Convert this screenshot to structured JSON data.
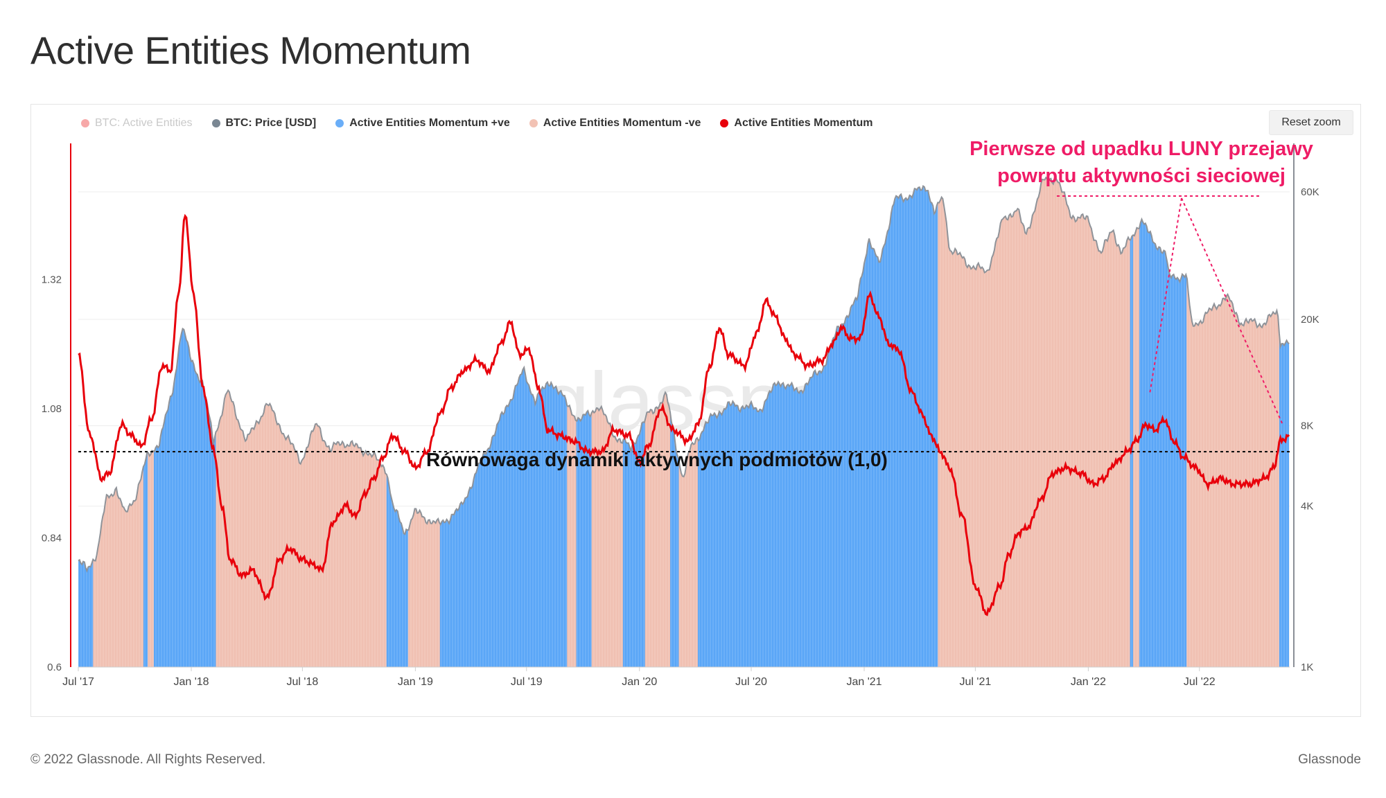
{
  "title": "Active Entities Momentum",
  "reset_zoom_label": "Reset zoom",
  "footer": {
    "copyright": "© 2022 Glassnode. All Rights Reserved.",
    "brand": "Glassnode"
  },
  "watermark": "glassnode",
  "legend": [
    {
      "label": "BTC: Active Entities",
      "color": "#f04848",
      "muted": true
    },
    {
      "label": "BTC: Price [USD]",
      "color": "#7a8793",
      "muted": false
    },
    {
      "label": "Active Entities Momentum +ve",
      "color": "#6aaef8",
      "muted": false
    },
    {
      "label": "Active Entities Momentum -ve",
      "color": "#f2c2b4",
      "muted": false
    },
    {
      "label": "Active Entities Momentum",
      "color": "#e8000b",
      "muted": false
    }
  ],
  "colors": {
    "positive": "#5aa6f7",
    "negative": "#f0c0b2",
    "momentum_line": "#e8000b",
    "price_line": "#8f9399",
    "annotation": "#ef1c66"
  },
  "annotations": {
    "luna": "Pierwsze od upadku LUNY przejawy\npowrptu aktywności sieciowej",
    "equilibrium": "Równowaga dynamiki aktywnych podmiotów (1,0)"
  },
  "chart_data": {
    "type": "area",
    "x_ticks": [
      "Jul '17",
      "Jan '18",
      "Jul '18",
      "Jan '19",
      "Jul '19",
      "Jan '20",
      "Jul '20",
      "Jan '21",
      "Jul '21",
      "Jan '22",
      "Jul '22"
    ],
    "x_tick_dates": [
      "2017-07-01",
      "2018-01-01",
      "2018-07-01",
      "2019-01-01",
      "2019-07-01",
      "2020-01-01",
      "2020-07-01",
      "2021-01-01",
      "2021-07-01",
      "2022-01-01",
      "2022-07-01"
    ],
    "x_range": [
      "2017-07-01",
      "2022-11-25"
    ],
    "y_left": {
      "ticks": [
        "0.6",
        "0.84",
        "1.08",
        "1.32"
      ],
      "range": [
        0.6,
        1.57
      ]
    },
    "y_right": {
      "scale": "log",
      "ticks": [
        "1K",
        "4K",
        "8K",
        "20K",
        "60K"
      ],
      "tick_values": [
        1000,
        4000,
        8000,
        20000,
        60000
      ],
      "range": [
        1000,
        90000
      ]
    },
    "equilibrium_level": 1.0,
    "series": [
      {
        "name": "BTC: Price [USD]",
        "axis": "right",
        "points": [
          [
            "2017-07-01",
            2500
          ],
          [
            "2017-07-15",
            2300
          ],
          [
            "2017-08-01",
            2700
          ],
          [
            "2017-08-15",
            4200
          ],
          [
            "2017-09-01",
            4700
          ],
          [
            "2017-09-15",
            3700
          ],
          [
            "2017-10-01",
            4300
          ],
          [
            "2017-10-20",
            6000
          ],
          [
            "2017-11-10",
            7000
          ],
          [
            "2017-12-01",
            10500
          ],
          [
            "2017-12-17",
            19000
          ],
          [
            "2018-01-01",
            14000
          ],
          [
            "2018-01-20",
            11500
          ],
          [
            "2018-02-06",
            7000
          ],
          [
            "2018-03-01",
            10800
          ],
          [
            "2018-04-01",
            7000
          ],
          [
            "2018-05-05",
            9700
          ],
          [
            "2018-06-01",
            7500
          ],
          [
            "2018-06-29",
            5900
          ],
          [
            "2018-07-25",
            8200
          ],
          [
            "2018-08-15",
            6400
          ],
          [
            "2018-09-01",
            7000
          ],
          [
            "2018-10-15",
            6400
          ],
          [
            "2018-11-15",
            5500
          ],
          [
            "2018-11-25",
            4000
          ],
          [
            "2018-12-15",
            3200
          ],
          [
            "2019-01-01",
            3800
          ],
          [
            "2019-02-08",
            3400
          ],
          [
            "2019-03-15",
            3900
          ],
          [
            "2019-04-05",
            5000
          ],
          [
            "2019-05-15",
            8000
          ],
          [
            "2019-06-26",
            12800
          ],
          [
            "2019-07-15",
            10000
          ],
          [
            "2019-08-10",
            11800
          ],
          [
            "2019-09-25",
            8300
          ],
          [
            "2019-10-26",
            9500
          ],
          [
            "2019-11-25",
            7200
          ],
          [
            "2019-12-18",
            6600
          ],
          [
            "2020-01-15",
            8800
          ],
          [
            "2020-02-14",
            10300
          ],
          [
            "2020-03-12",
            5000
          ],
          [
            "2020-03-25",
            6700
          ],
          [
            "2020-05-01",
            8800
          ],
          [
            "2020-06-01",
            9600
          ],
          [
            "2020-07-15",
            9200
          ],
          [
            "2020-08-15",
            11800
          ],
          [
            "2020-09-15",
            10700
          ],
          [
            "2020-10-25",
            13100
          ],
          [
            "2020-11-20",
            18500
          ],
          [
            "2020-12-20",
            23500
          ],
          [
            "2021-01-08",
            40000
          ],
          [
            "2021-01-25",
            32000
          ],
          [
            "2021-02-20",
            56000
          ],
          [
            "2021-03-15",
            58000
          ],
          [
            "2021-04-14",
            63000
          ],
          [
            "2021-04-25",
            50000
          ],
          [
            "2021-05-10",
            57000
          ],
          [
            "2021-05-20",
            37000
          ],
          [
            "2021-06-22",
            32000
          ],
          [
            "2021-07-20",
            30000
          ],
          [
            "2021-08-15",
            47000
          ],
          [
            "2021-09-07",
            52000
          ],
          [
            "2021-09-21",
            41000
          ],
          [
            "2021-10-20",
            66000
          ],
          [
            "2021-11-10",
            68000
          ],
          [
            "2021-12-04",
            49000
          ],
          [
            "2022-01-01",
            47000
          ],
          [
            "2022-01-22",
            35000
          ],
          [
            "2022-02-10",
            44000
          ],
          [
            "2022-02-24",
            35000
          ],
          [
            "2022-03-28",
            47000
          ],
          [
            "2022-04-15",
            40000
          ],
          [
            "2022-05-07",
            35000
          ],
          [
            "2022-05-12",
            29000
          ],
          [
            "2022-06-10",
            29000
          ],
          [
            "2022-06-18",
            19000
          ],
          [
            "2022-07-05",
            20000
          ],
          [
            "2022-08-14",
            24500
          ],
          [
            "2022-09-05",
            19700
          ],
          [
            "2022-10-10",
            19200
          ],
          [
            "2022-11-05",
            21200
          ],
          [
            "2022-11-10",
            16500
          ],
          [
            "2022-11-25",
            16500
          ]
        ]
      },
      {
        "name": "Active Entities Momentum",
        "axis": "left",
        "points": [
          [
            "2017-07-01",
            1.18
          ],
          [
            "2017-07-20",
            1.03
          ],
          [
            "2017-08-08",
            0.95
          ],
          [
            "2017-08-20",
            0.96
          ],
          [
            "2017-09-10",
            1.05
          ],
          [
            "2017-09-25",
            1.03
          ],
          [
            "2017-10-12",
            1.01
          ],
          [
            "2017-10-28",
            1.06
          ],
          [
            "2017-11-15",
            1.16
          ],
          [
            "2017-11-28",
            1.15
          ],
          [
            "2017-12-12",
            1.3
          ],
          [
            "2017-12-22",
            1.44
          ],
          [
            "2018-01-05",
            1.29
          ],
          [
            "2018-01-20",
            1.12
          ],
          [
            "2018-02-05",
            1.01
          ],
          [
            "2018-02-20",
            0.9
          ],
          [
            "2018-03-05",
            0.8
          ],
          [
            "2018-03-25",
            0.77
          ],
          [
            "2018-04-10",
            0.78
          ],
          [
            "2018-05-05",
            0.73
          ],
          [
            "2018-05-25",
            0.8
          ],
          [
            "2018-06-10",
            0.82
          ],
          [
            "2018-07-01",
            0.8
          ],
          [
            "2018-07-20",
            0.79
          ],
          [
            "2018-08-01",
            0.78
          ],
          [
            "2018-08-20",
            0.87
          ],
          [
            "2018-09-10",
            0.9
          ],
          [
            "2018-09-25",
            0.88
          ],
          [
            "2018-10-10",
            0.92
          ],
          [
            "2018-10-25",
            0.95
          ],
          [
            "2018-11-10",
            0.99
          ],
          [
            "2018-11-25",
            1.03
          ],
          [
            "2018-12-15",
            1.0
          ],
          [
            "2019-01-01",
            0.97
          ],
          [
            "2019-01-20",
            1.0
          ],
          [
            "2019-02-10",
            1.07
          ],
          [
            "2019-03-01",
            1.12
          ],
          [
            "2019-03-20",
            1.15
          ],
          [
            "2019-04-10",
            1.17
          ],
          [
            "2019-05-01",
            1.15
          ],
          [
            "2019-05-20",
            1.2
          ],
          [
            "2019-06-05",
            1.24
          ],
          [
            "2019-06-20",
            1.18
          ],
          [
            "2019-07-05",
            1.19
          ],
          [
            "2019-07-20",
            1.12
          ],
          [
            "2019-08-05",
            1.04
          ],
          [
            "2019-08-25",
            1.03
          ],
          [
            "2019-09-15",
            1.02
          ],
          [
            "2019-10-10",
            1.0
          ],
          [
            "2019-11-01",
            1.0
          ],
          [
            "2019-11-20",
            1.04
          ],
          [
            "2019-12-15",
            1.03
          ],
          [
            "2020-01-01",
            0.98
          ],
          [
            "2020-01-15",
            1.01
          ],
          [
            "2020-02-05",
            1.08
          ],
          [
            "2020-02-25",
            1.04
          ],
          [
            "2020-03-20",
            1.02
          ],
          [
            "2020-04-05",
            1.05
          ],
          [
            "2020-04-25",
            1.16
          ],
          [
            "2020-05-10",
            1.23
          ],
          [
            "2020-05-25",
            1.18
          ],
          [
            "2020-06-20",
            1.16
          ],
          [
            "2020-07-10",
            1.22
          ],
          [
            "2020-07-25",
            1.28
          ],
          [
            "2020-08-10",
            1.25
          ],
          [
            "2020-08-25",
            1.21
          ],
          [
            "2020-09-10",
            1.18
          ],
          [
            "2020-10-01",
            1.16
          ],
          [
            "2020-10-25",
            1.17
          ],
          [
            "2020-11-10",
            1.2
          ],
          [
            "2020-11-25",
            1.23
          ],
          [
            "2020-12-10",
            1.21
          ],
          [
            "2020-12-25",
            1.21
          ],
          [
            "2021-01-10",
            1.29
          ],
          [
            "2021-01-25",
            1.25
          ],
          [
            "2021-02-10",
            1.2
          ],
          [
            "2021-02-25",
            1.19
          ],
          [
            "2021-03-20",
            1.11
          ],
          [
            "2021-04-05",
            1.07
          ],
          [
            "2021-04-20",
            1.03
          ],
          [
            "2021-05-05",
            1.0
          ],
          [
            "2021-05-20",
            0.97
          ],
          [
            "2021-06-10",
            0.88
          ],
          [
            "2021-07-01",
            0.75
          ],
          [
            "2021-07-20",
            0.7
          ],
          [
            "2021-08-10",
            0.75
          ],
          [
            "2021-08-25",
            0.81
          ],
          [
            "2021-09-10",
            0.85
          ],
          [
            "2021-09-25",
            0.86
          ],
          [
            "2021-10-15",
            0.91
          ],
          [
            "2021-11-05",
            0.96
          ],
          [
            "2021-11-25",
            0.97
          ],
          [
            "2021-12-20",
            0.96
          ],
          [
            "2022-01-10",
            0.94
          ],
          [
            "2022-01-25",
            0.95
          ],
          [
            "2022-02-15",
            0.98
          ],
          [
            "2022-03-05",
            1.0
          ],
          [
            "2022-03-20",
            1.02
          ],
          [
            "2022-04-05",
            1.05
          ],
          [
            "2022-04-20",
            1.04
          ],
          [
            "2022-05-05",
            1.06
          ],
          [
            "2022-05-20",
            1.02
          ],
          [
            "2022-06-05",
            0.99
          ],
          [
            "2022-06-25",
            0.97
          ],
          [
            "2022-07-15",
            0.94
          ],
          [
            "2022-08-05",
            0.95
          ],
          [
            "2022-08-25",
            0.94
          ],
          [
            "2022-09-20",
            0.94
          ],
          [
            "2022-10-15",
            0.95
          ],
          [
            "2022-10-30",
            0.97
          ],
          [
            "2022-11-10",
            1.02
          ],
          [
            "2022-11-25",
            1.03
          ]
        ]
      },
      {
        "name": "Active Entities Momentum +ve",
        "axis": "fill",
        "periods": [
          [
            "2017-07-01",
            "2017-07-25"
          ],
          [
            "2017-10-15",
            "2017-10-22"
          ],
          [
            "2017-11-01",
            "2018-02-10"
          ],
          [
            "2018-11-15",
            "2018-12-20"
          ],
          [
            "2019-02-10",
            "2019-09-05"
          ],
          [
            "2019-09-20",
            "2019-10-15"
          ],
          [
            "2019-12-05",
            "2020-01-10"
          ],
          [
            "2020-02-20",
            "2020-03-05"
          ],
          [
            "2020-04-05",
            "2021-05-01"
          ],
          [
            "2022-03-10",
            "2022-03-15"
          ],
          [
            "2022-03-25",
            "2022-06-10"
          ],
          [
            "2022-11-08",
            "2022-11-25"
          ]
        ]
      },
      {
        "name": "Active Entities Momentum -ve",
        "axis": "fill",
        "periods": "complement of +ve"
      }
    ]
  }
}
